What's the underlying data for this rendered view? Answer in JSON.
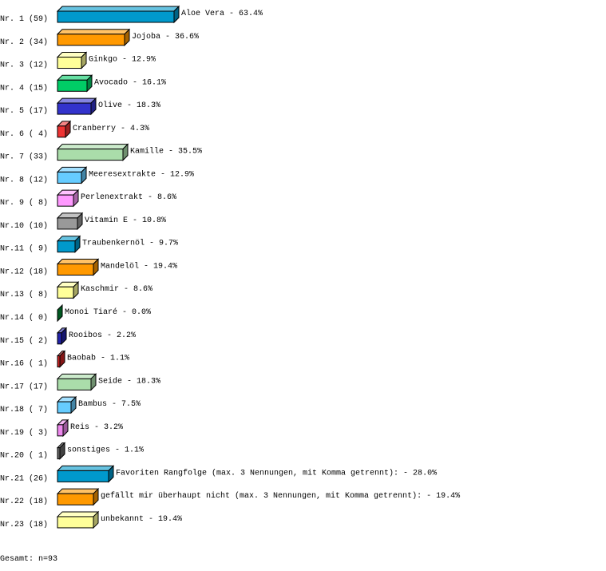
{
  "chart_data": {
    "type": "bar",
    "orientation": "horizontal",
    "style": "3d",
    "grid": false,
    "categories": [
      "Nr. 1 (59)",
      "Nr. 2 (34)",
      "Nr. 3 (12)",
      "Nr. 4 (15)",
      "Nr. 5 (17)",
      "Nr. 6 ( 4)",
      "Nr. 7 (33)",
      "Nr. 8 (12)",
      "Nr. 9 ( 8)",
      "Nr.10 (10)",
      "Nr.11 ( 9)",
      "Nr.12 (18)",
      "Nr.13 ( 8)",
      "Nr.14 ( 0)",
      "Nr.15 ( 2)",
      "Nr.16 ( 1)",
      "Nr.17 (17)",
      "Nr.18 ( 7)",
      "Nr.19 ( 3)",
      "Nr.20 ( 1)",
      "Nr.21 (26)",
      "Nr.22 (18)",
      "Nr.23 (18)"
    ],
    "labels": [
      "Aloe Vera -  63.4%",
      "Jojoba -  36.6%",
      "Ginkgo -  12.9%",
      "Avocado -  16.1%",
      "Olive -  18.3%",
      "Cranberry -   4.3%",
      "Kamille -  35.5%",
      "Meeresextrakte -  12.9%",
      "Perlenextrakt -   8.6%",
      "Vitamin E -  10.8%",
      "Traubenkernöl -   9.7%",
      "Mandelöl -  19.4%",
      "Kaschmir -   8.6%",
      "Monoi Tiaré -   0.0%",
      "Rooibos -   2.2%",
      "Baobab -   1.1%",
      "Seide -  18.3%",
      "Bambus -   7.5%",
      "Reis -   3.2%",
      "sonstiges -   1.1%",
      "Favoriten Rangfolge (max. 3 Nennungen, mit Komma getrennt): -  28.0%",
      "gefällt mir überhaupt nicht (max. 3 Nennungen, mit Komma getrennt): -  19.4%",
      "unbekannt -  19.4%"
    ],
    "counts": [
      59,
      34,
      12,
      15,
      17,
      4,
      33,
      12,
      8,
      10,
      9,
      18,
      8,
      0,
      2,
      1,
      17,
      7,
      3,
      1,
      26,
      18,
      18
    ],
    "values": [
      63.4,
      36.6,
      12.9,
      16.1,
      18.3,
      4.3,
      35.5,
      12.9,
      8.6,
      10.8,
      9.7,
      19.4,
      8.6,
      0.0,
      2.2,
      1.1,
      18.3,
      7.5,
      3.2,
      1.1,
      28.0,
      19.4,
      19.4
    ],
    "colors": [
      "#0099cc",
      "#ff9900",
      "#ffff99",
      "#00cc66",
      "#3333cc",
      "#ee3333",
      "#aaddaa",
      "#66ccff",
      "#ff99ff",
      "#999999",
      "#0099cc",
      "#ff9900",
      "#ffff99",
      "#008833",
      "#2222aa",
      "#cc2222",
      "#aaddaa",
      "#66ccff",
      "#ee88ee",
      "#666666",
      "#0099cc",
      "#ff9900",
      "#ffff99"
    ],
    "total": "Gesamt: n=93"
  }
}
